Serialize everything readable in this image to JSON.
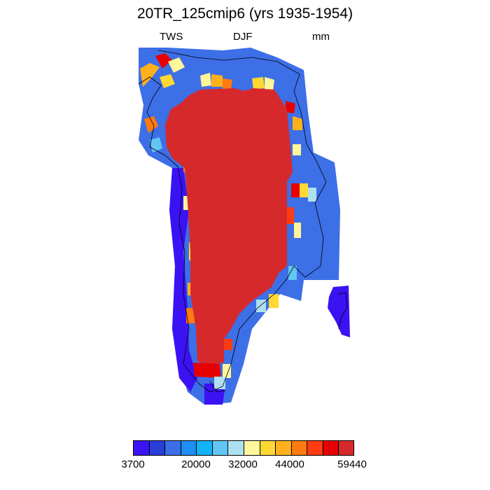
{
  "title": "20TR_125cmip6 (yrs 1935-1954)",
  "subtitle": {
    "left": "TWS",
    "center": "DJF",
    "right": "mm"
  },
  "map": {
    "region": "Greenland",
    "variable": "TWS",
    "season": "DJF",
    "units": "mm"
  },
  "colorbar": {
    "colors": [
      "#3b12f4",
      "#2a3ed8",
      "#3d6fe6",
      "#1f8ef2",
      "#12b2f6",
      "#62c6f3",
      "#aee0f0",
      "#fff59a",
      "#ffd832",
      "#ffb11d",
      "#ff7a10",
      "#ff3b12",
      "#e60000",
      "#d6292c"
    ],
    "labels": [
      "3700",
      "20000",
      "32000",
      "44000",
      "59440"
    ]
  }
}
